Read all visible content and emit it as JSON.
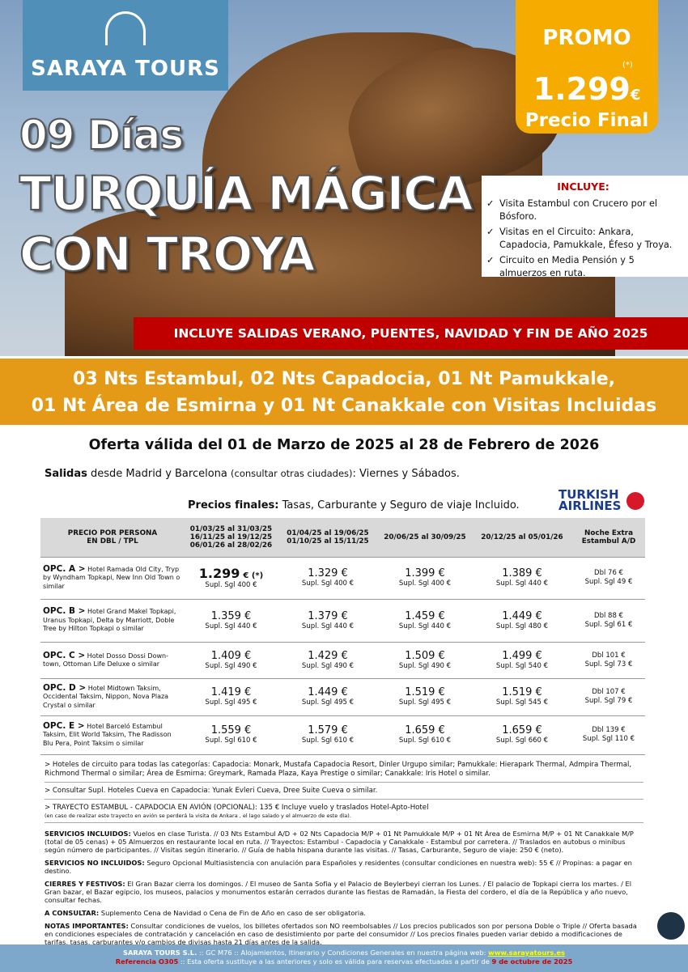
{
  "header": {
    "logo": "SARAYA TOURS",
    "days": "09 Días",
    "title_1": "TURQUÍA MÁGICA",
    "title_2": "CON TROYA"
  },
  "promo": {
    "label": "PROMO",
    "note": "(*)",
    "price": "1.299",
    "currency": "€",
    "final": "Precio Final"
  },
  "includes": {
    "title": "INCLUYE:",
    "items": [
      "Visita Estambul con Crucero por el Bósforo.",
      "Visitas en el Circuito: Ankara, Capadocia, Pamukkale, Éfeso y Troya.",
      "Circuito en Media Pensión y 5 almuerzos en ruta."
    ]
  },
  "banner_red": "INCLUYE SALIDAS VERANO, PUENTES, NAVIDAD Y FIN DE AÑO 2025",
  "banner_orange": [
    "03 Nts Estambul, 02 Nts Capadocia, 01 Nt Pamukkale,",
    "01 Nt Área de Esmirna y 01 Nt Canakkale con Visitas Incluidas"
  ],
  "offer": "Oferta válida del 01 de Marzo de 2025 al 28 de Febrero de 2026",
  "departures": {
    "label": "Salidas",
    "text": " desde Madrid y Barcelona ",
    "note": "(consultar otras ciudades)",
    "end": ": Viernes y Sábados."
  },
  "prices_note": {
    "label": "Precios finales:",
    "text": " Tasas, Carburante y Seguro de viaje Incluido."
  },
  "airline": {
    "line_1": "TURKISH",
    "line_2": "AIRLINES"
  },
  "table": {
    "headers": [
      [
        "PRECIO POR PERSONA",
        "EN DBL / TPL"
      ],
      [
        "01/03/25 al 31/03/25",
        "16/11/25 al 19/12/25",
        "06/01/26 al 28/02/26"
      ],
      [
        "01/04/25 al 19/06/25",
        "01/10/25 al 15/11/25"
      ],
      [
        "20/06/25 al 30/09/25"
      ],
      [
        "20/12/25 al 05/01/26"
      ],
      [
        "Noche Extra",
        "Estambul A/D"
      ]
    ],
    "rows": [
      {
        "option": "OPC. A >",
        "hotels": " Hotel Ramada Old City, Tryp by Wyndham Topkapi, New Inn Old Town o similar",
        "cells": [
          {
            "price": "1.299",
            "suffix": "€ (*)",
            "supl": "Supl. Sgl 400 €"
          },
          {
            "price": "1.329 €",
            "supl": "Supl. Sgl 400 €"
          },
          {
            "price": "1.399 €",
            "supl": "Supl. Sgl 400 €"
          },
          {
            "price": "1.389 €",
            "supl": "Supl. Sgl 440 €"
          }
        ],
        "extra": [
          "Dbl 76 €",
          "Supl. Sgl 49 €"
        ]
      },
      {
        "option": "OPC. B >",
        "hotels": " Hotel Grand Makel Topkapi, Uranus Topkapi, Delta by Marriott, Doble Tree by Hilton Topkapi o similar",
        "cells": [
          {
            "price": "1.359 €",
            "supl": "Supl. Sgl 440 €"
          },
          {
            "price": "1.379 €",
            "supl": "Supl. Sgl 440 €"
          },
          {
            "price": "1.459 €",
            "supl": "Supl. Sgl 440 €"
          },
          {
            "price": "1.449 €",
            "supl": "Supl. Sgl 480 €"
          }
        ],
        "extra": [
          "Dbl 88 €",
          "Supl. Sgl 61 €"
        ]
      },
      {
        "option": "OPC. C >",
        "hotels": " Hotel Dosso Dossi Down-town, Ottoman Life Deluxe o similar",
        "cells": [
          {
            "price": "1.409 €",
            "supl": "Supl. Sgl 490 €"
          },
          {
            "price": "1.429 €",
            "supl": "Supl. Sgl 490 €"
          },
          {
            "price": "1.509 €",
            "supl": "Supl. Sgl 490 €"
          },
          {
            "price": "1.499 €",
            "supl": "Supl. Sgl 540 €"
          }
        ],
        "extra": [
          "Dbl 101 €",
          "Supl. Sgl 73 €"
        ]
      },
      {
        "option": "OPC. D >",
        "hotels": " Hotel Midtown Taksim, Occidental Taksim, Nippon, Nova Plaza Crystal o similar",
        "cells": [
          {
            "price": "1.419 €",
            "supl": "Supl. Sgl 495 €"
          },
          {
            "price": "1.449 €",
            "supl": "Supl. Sgl 495 €"
          },
          {
            "price": "1.519 €",
            "supl": "Supl. Sgl 495 €"
          },
          {
            "price": "1.519 €",
            "supl": "Supl. Sgl 545 €"
          }
        ],
        "extra": [
          "Dbl 107 €",
          "Supl. Sgl 79 €"
        ]
      },
      {
        "option": "OPC. E >",
        "hotels": " Hotel Barceló Estambul Taksim, Elit World Taksim, The Radisson Blu Pera, Point Taksim o similar",
        "cells": [
          {
            "price": "1.559 €",
            "supl": "Supl. Sgl 610 €"
          },
          {
            "price": "1.579 €",
            "supl": "Supl. Sgl 610 €"
          },
          {
            "price": "1.659 €",
            "supl": "Supl. Sgl 610 €"
          },
          {
            "price": "1.659 €",
            "supl": "Supl. Sgl 660 €"
          }
        ],
        "extra": [
          "Dbl 139 €",
          "Supl. Sgl 110 €"
        ]
      }
    ]
  },
  "notes": [
    {
      "text": "> Hoteles de circuito para todas las categorías: Capadocia: Monark, Mustafa Capadocia Resort, Dinler Urgupo similar; Pamukkale: Hierapark Thermal, Admpira Thermal, Richmond Thermal o similar; Área de Esmirna: Greymark, Ramada Plaza, Kaya Prestige o similar; Canakkale: Iris Hotel o similar."
    },
    {
      "text": "> Consultar Supl. Hoteles Cueva en Capadocia: Yunak Evleri Cueva, Dree Suite Cueva o similar."
    },
    {
      "text": "> TRAYECTO ESTAMBUL - CAPADOCIA EN AVIÓN (OPCIONAL): 135 € Incluye vuelo y traslados Hotel-Apto-Hotel",
      "small": "(en caso de realizar este trayecto en avión se perderá la visita de Ankara , el lago salado y el almuerzo de este día)."
    }
  ],
  "conditions": [
    {
      "label": "SERVICIOS INCLUIDOS:",
      "text": " Vuelos en clase Turista. // 03 Nts Estambul A/D + 02 Nts Capadocia M/P + 01 Nt Pamukkale M/P + 01 Nt Área de Esmirna M/P + 01 Nt Canakkale M/P (total de 05 cenas) + 05 Almuerzos en restaurante local en ruta. // Trayectos: Estambul - Capadocia y Canakkale - Estambul por carretera. // Traslados en autobus o minibus según número de participantes. // Visitas según itinerario. // Guía de habla hispana durante las visitas. // Tasas, Carburante, Seguro de viaje: 250 € (neto)."
    },
    {
      "label": "SERVICIOS NO INCLUIDOS:",
      "text": " Seguro Opcional Multiasistencia con anulación para Españoles y residentes (consultar condiciones en nuestra web): 55 € // Propinas: a pagar en destino."
    },
    {
      "label": "CIERRES Y FESTIVOS:",
      "text": " El Gran Bazar cierra los domingos. / El museo de Santa Sofia y el Palacio de Beylerbeyi cierran los Lunes. / El palacio de Topkapi cierra los martes. / El Gran bazar, el Bazar egipcio, los museos, palacios y monumentos estarán cerrados durante las fiestas de Ramadán, la Fiesta del cordero, el día de la República y año nuevo, consultar fechas."
    },
    {
      "label": "A CONSULTAR:",
      "text": " Suplemento Cena de Navidad o Cena de Fin de Año en caso de ser obligatoria."
    },
    {
      "label": "NOTAS IMPORTANTES:",
      "text": " Consultar condiciones de vuelos, los billetes ofertados son NO reembolsables // Los precios publicados son por persona Doble o Triple // Oferta basada en condiciones especiales de contratación y cancelación en caso de desistimiento por parte del consumidor // Los precios finales pueden variar debido a modificaciones de tarifas, tasas, carburantes y/o cambios de divisas hasta 21 días antes de la salida."
    }
  ],
  "footer": {
    "company": "SARAYA TOURS S.L.",
    "line_1": " :: GC M76 ::  Alojamientos, Itinerario y Condiciones Generales en nuestra página web: ",
    "url": "www.sarayatours.es",
    "reference": "Referencia O305",
    "line_2": " :: Esta oferta sustituye a las anteriores y solo es válida para reservas efectuadas a partir de ",
    "date": "9 de octubre de 2025"
  }
}
